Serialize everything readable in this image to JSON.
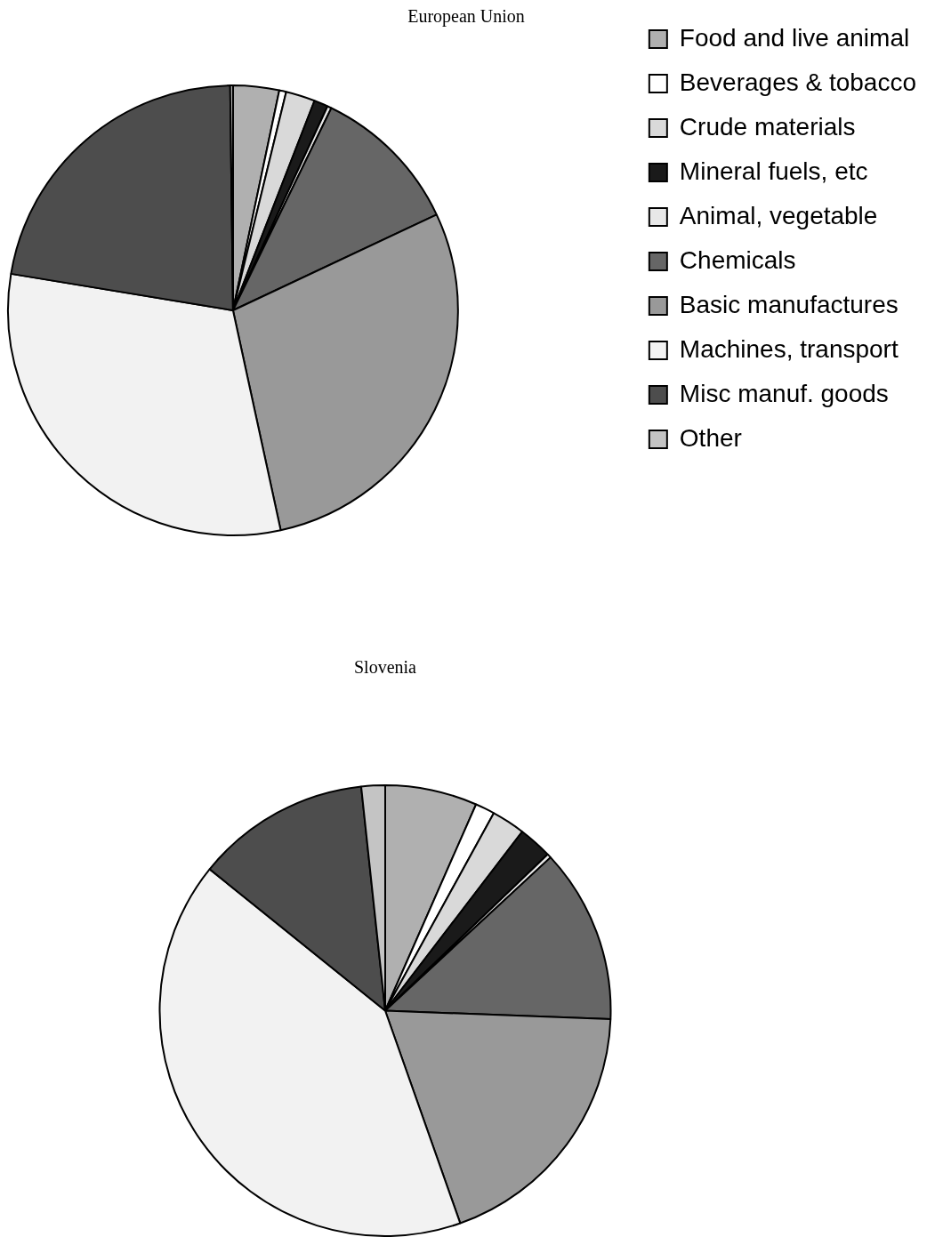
{
  "chart_data": [
    {
      "type": "pie",
      "title": "European Union",
      "legend": "right",
      "categories": [
        "Food and live animal",
        "Beverages & tobacco",
        "Crude materials",
        "Mineral fuels, etc",
        "Animal, vegetable",
        "Chemicals",
        "Basic manufactures",
        "Machines, transport",
        "Misc manuf. goods",
        "Other"
      ],
      "values": [
        3.3,
        0.5,
        2.1,
        1.0,
        0.3,
        10.8,
        28.6,
        31.0,
        22.2,
        0.2
      ],
      "colors": [
        "#b0b0b0",
        "#ffffff",
        "#d9d9d9",
        "#1a1a1a",
        "#e8e8e8",
        "#666666",
        "#999999",
        "#f2f2f2",
        "#4d4d4d",
        "#c4c4c4"
      ]
    },
    {
      "type": "pie",
      "title": "Slovenia",
      "legend": false,
      "categories": [
        null,
        null,
        null,
        null,
        null,
        null,
        null,
        null,
        null,
        null
      ],
      "values": [
        6.6,
        1.4,
        2.4,
        2.4,
        0.3,
        12.5,
        19.0,
        41.2,
        12.5,
        1.7
      ],
      "colors": [
        "#b0b0b0",
        "#ffffff",
        "#d9d9d9",
        "#1a1a1a",
        "#e8e8e8",
        "#666666",
        "#999999",
        "#f2f2f2",
        "#4d4d4d",
        "#c4c4c4"
      ]
    }
  ]
}
